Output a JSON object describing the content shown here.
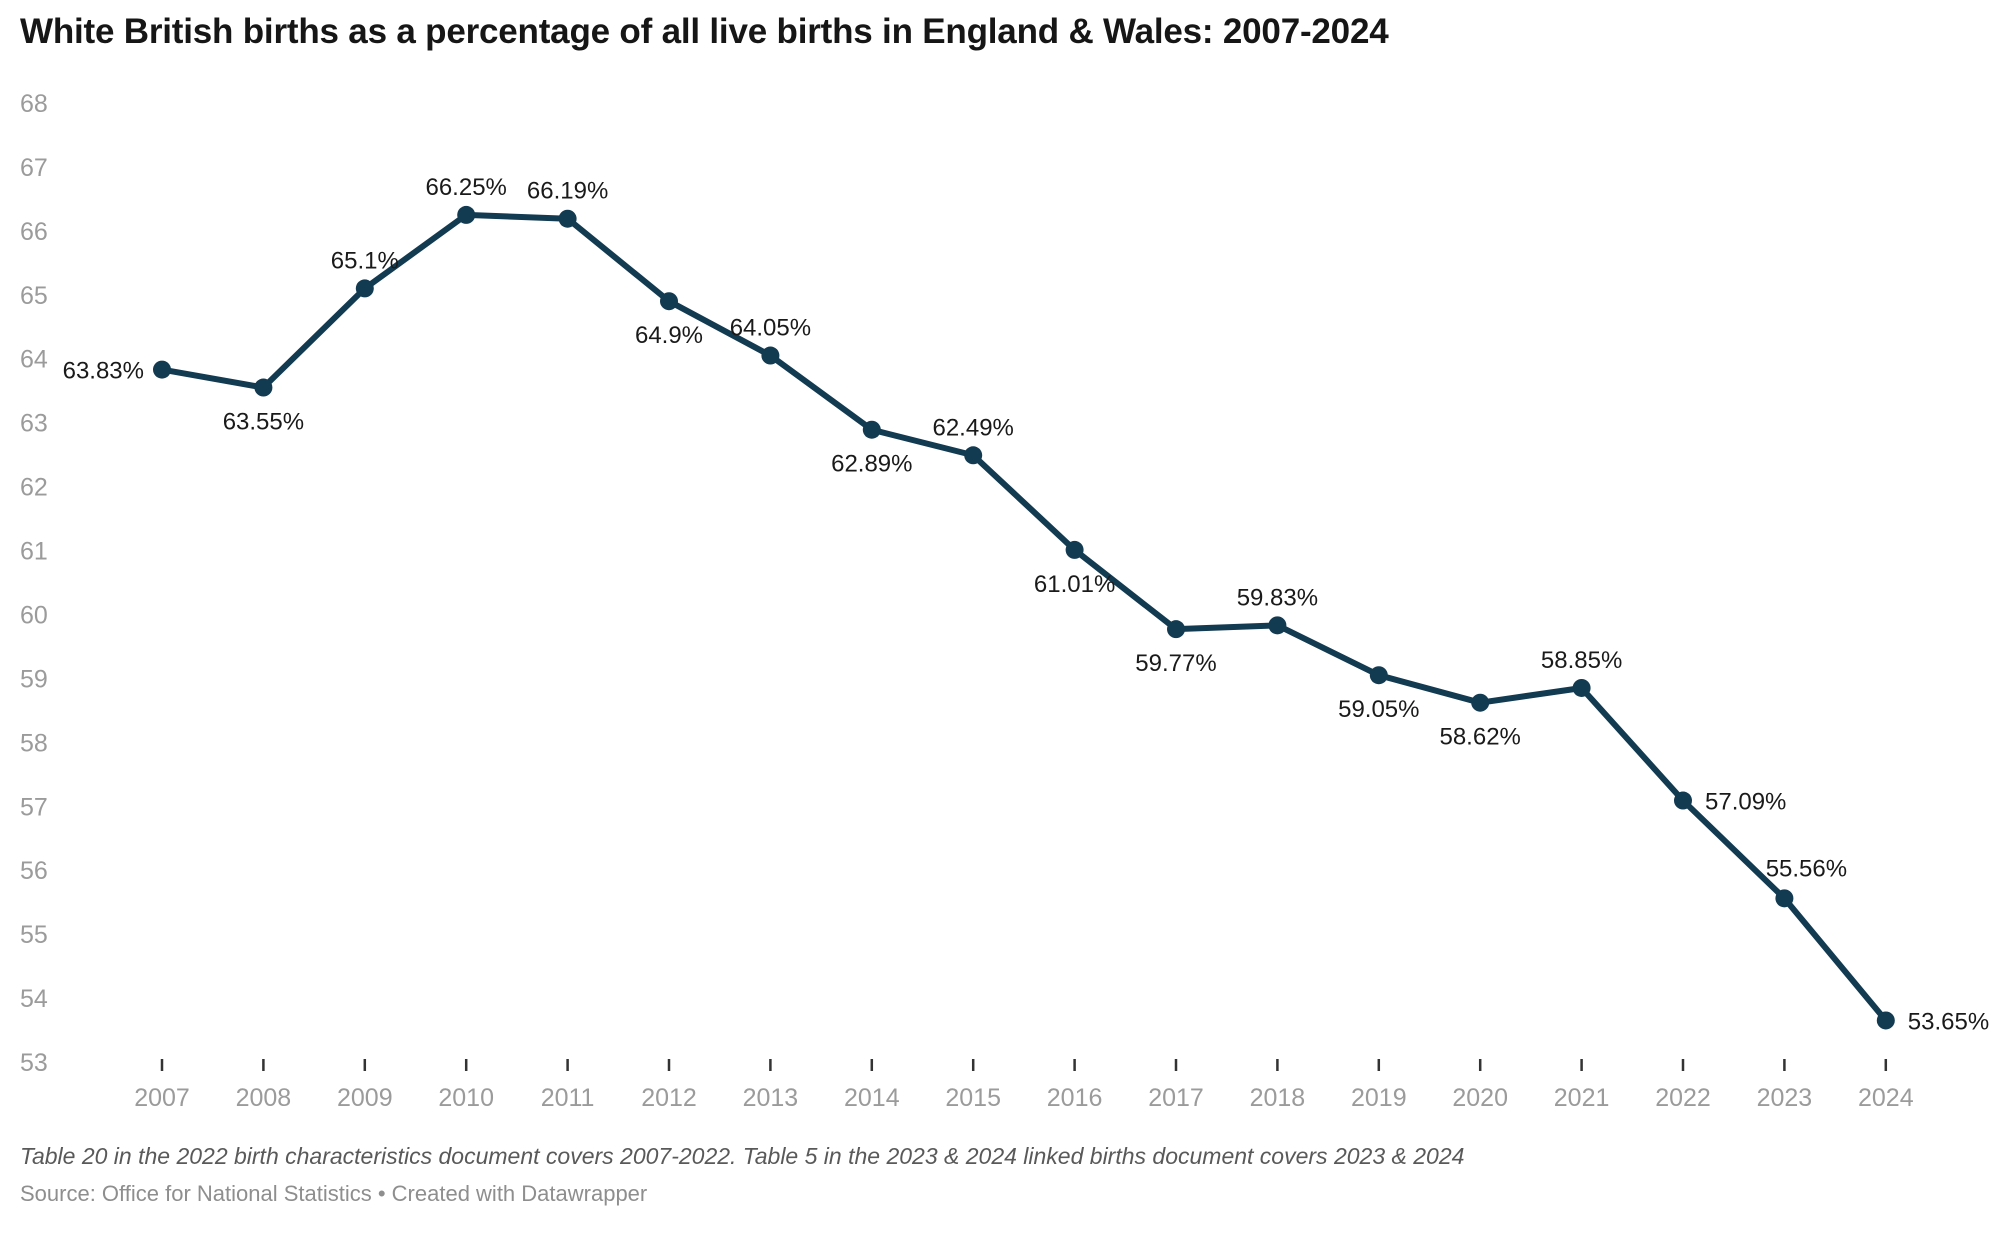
{
  "header": {
    "title": "White British births as a percentage of all live births in England & Wales: 2007-2024"
  },
  "footer": {
    "note": "Table 20 in the 2022 birth characteristics document covers 2007-2022. Table 5 in the 2023 & 2024 linked births document covers 2023 & 2024",
    "source": "Source: Office for National Statistics • Created with Datawrapper"
  },
  "chart_data": {
    "type": "line",
    "title": "White British births as a percentage of all live births in England & Wales: 2007-2024",
    "categories": [
      "2007",
      "2008",
      "2009",
      "2010",
      "2011",
      "2012",
      "2013",
      "2014",
      "2015",
      "2016",
      "2017",
      "2018",
      "2019",
      "2020",
      "2021",
      "2022",
      "2023",
      "2024"
    ],
    "values": [
      63.83,
      63.55,
      65.1,
      66.25,
      66.19,
      64.9,
      64.05,
      62.89,
      62.49,
      61.01,
      59.77,
      59.83,
      59.05,
      58.62,
      58.85,
      57.09,
      55.56,
      53.65
    ],
    "point_labels": [
      "63.83%",
      "63.55%",
      "65.1%",
      "66.25%",
      "66.19%",
      "64.9%",
      "64.05%",
      "62.89%",
      "62.49%",
      "61.01%",
      "59.77%",
      "59.83%",
      "59.05%",
      "58.62%",
      "58.85%",
      "57.09%",
      "55.56%",
      "53.65%"
    ],
    "label_placement": [
      "left",
      "below",
      "above",
      "above",
      "above",
      "below",
      "above",
      "below",
      "above",
      "below",
      "below",
      "above",
      "below",
      "below",
      "above",
      "right",
      "above-right",
      "right"
    ],
    "xlabel": "",
    "ylabel": "",
    "ylim": [
      53,
      68
    ],
    "yticks": [
      53,
      54,
      55,
      56,
      57,
      58,
      59,
      60,
      61,
      62,
      63,
      64,
      65,
      66,
      67,
      68
    ],
    "grid": false,
    "legend": "none",
    "line_color": "#123a51",
    "marker_color": "#123a51",
    "axis_text_color": "#9b9b9b",
    "tick_mark_color": "#333333"
  }
}
